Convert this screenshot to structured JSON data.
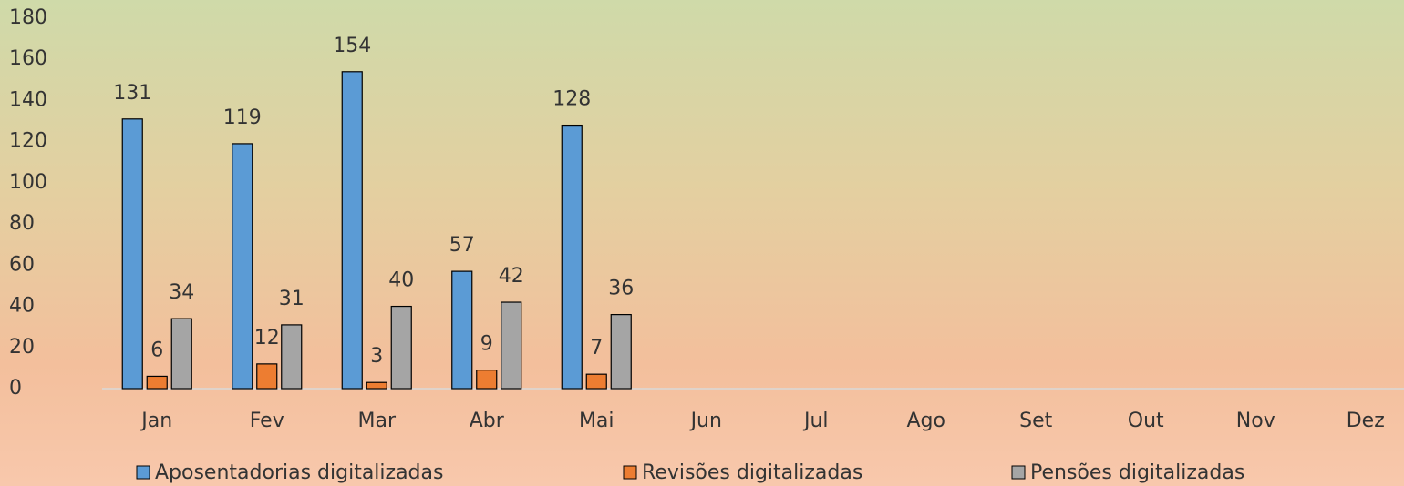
{
  "chart_data": {
    "type": "bar",
    "categories": [
      "Jan",
      "Fev",
      "Mar",
      "Abr",
      "Mai",
      "Jun",
      "Jul",
      "Ago",
      "Set",
      "Out",
      "Nov",
      "Dez"
    ],
    "series": [
      {
        "name": "Aposentadorias digitalizadas",
        "color": "#5b9bd5",
        "values": [
          131,
          119,
          154,
          57,
          128,
          null,
          null,
          null,
          null,
          null,
          null,
          null
        ]
      },
      {
        "name": "Revisões digitalizadas",
        "color": "#ed7d31",
        "values": [
          6,
          12,
          3,
          9,
          7,
          null,
          null,
          null,
          null,
          null,
          null,
          null
        ]
      },
      {
        "name": "Pensões digitalizadas",
        "color": "#a5a5a5",
        "values": [
          34,
          31,
          40,
          42,
          36,
          null,
          null,
          null,
          null,
          null,
          null,
          null
        ]
      }
    ],
    "ylim": [
      0,
      180
    ],
    "yticks": [
      0,
      20,
      40,
      60,
      80,
      100,
      120,
      140,
      160,
      180
    ],
    "grid": false,
    "legend": "bottom"
  }
}
